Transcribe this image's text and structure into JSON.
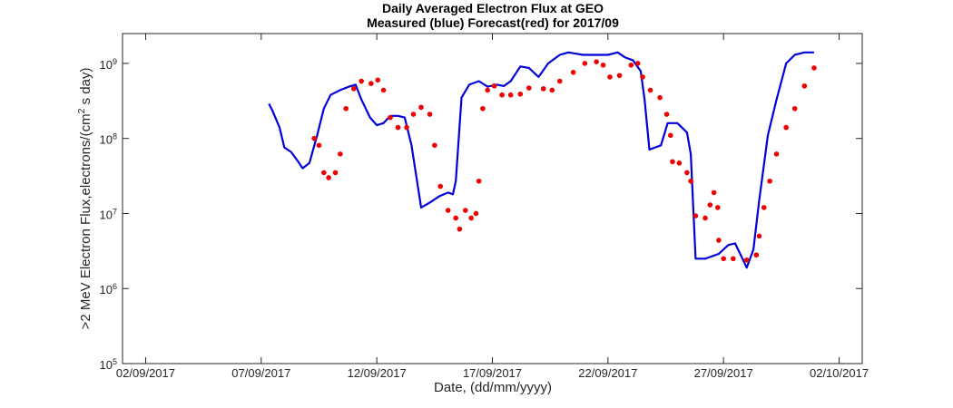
{
  "chart_data": {
    "type": "line",
    "title": "Daily Averaged Electron Flux at GEO",
    "subtitle": "Measured (blue) Forecast(red) for 2017/09",
    "x_label": "Date, (dd/mm/yyyy)",
    "y_label": ">2 MeV Electron Flux,electrons/(cm^2 s day)",
    "log_y": true,
    "grid": false,
    "xlim": [
      "2017-09-01T00:00",
      "2017-10-03T00:00"
    ],
    "xticks": [
      {
        "value": "2017-09-02T00:00",
        "label": "02/09/2017"
      },
      {
        "value": "2017-09-07T00:00",
        "label": "07/09/2017"
      },
      {
        "value": "2017-09-12T00:00",
        "label": "12/09/2017"
      },
      {
        "value": "2017-09-17T00:00",
        "label": "17/09/2017"
      },
      {
        "value": "2017-09-22T00:00",
        "label": "22/09/2017"
      },
      {
        "value": "2017-09-27T00:00",
        "label": "27/09/2017"
      },
      {
        "value": "2017-10-02T00:00",
        "label": "02/10/2017"
      }
    ],
    "ylim": [
      100000,
      2500000000
    ],
    "yticks": [
      {
        "value": 100000,
        "label": "10^5"
      },
      {
        "value": 1000000,
        "label": "10^6"
      },
      {
        "value": 10000000,
        "label": "10^7"
      },
      {
        "value": 100000000,
        "label": "10^8"
      },
      {
        "value": 1000000000,
        "label": "10^9"
      }
    ],
    "series": [
      {
        "color": "#0000d9",
        "mode": "line",
        "x": [
          "2017-09-07T08:00",
          "2017-09-07T12:00",
          "2017-09-07T19:00",
          "2017-09-08T00:00",
          "2017-09-08T07:00",
          "2017-09-08T14:00",
          "2017-09-08T19:00",
          "2017-09-09T02:00",
          "2017-09-09T10:00",
          "2017-09-09T17:00",
          "2017-09-10T00:00",
          "2017-09-10T10:00",
          "2017-09-10T19:00",
          "2017-09-11T02:00",
          "2017-09-11T08:00",
          "2017-09-11T17:00",
          "2017-09-12T00:00",
          "2017-09-12T07:00",
          "2017-09-12T14:00",
          "2017-09-12T22:00",
          "2017-09-13T05:00",
          "2017-09-13T12:00",
          "2017-09-13T22:00",
          "2017-09-14T07:00",
          "2017-09-14T17:00",
          "2017-09-15T02:00",
          "2017-09-15T07:00",
          "2017-09-15T10:00",
          "2017-09-15T16:00",
          "2017-09-16T00:00",
          "2017-09-16T10:00",
          "2017-09-16T19:00",
          "2017-09-17T05:00",
          "2017-09-17T12:00",
          "2017-09-17T19:00",
          "2017-09-18T05:00",
          "2017-09-18T14:00",
          "2017-09-19T00:00",
          "2017-09-19T10:00",
          "2017-09-19T22:00",
          "2017-09-20T07:00",
          "2017-09-20T22:00",
          "2017-09-21T12:00",
          "2017-09-22T00:00",
          "2017-09-22T10:00",
          "2017-09-22T18:00",
          "2017-09-23T02:00",
          "2017-09-23T10:00",
          "2017-09-23T14:00",
          "2017-09-23T19:00",
          "2017-09-24T01:00",
          "2017-09-24T07:00",
          "2017-09-24T14:00",
          "2017-09-25T00:00",
          "2017-09-25T10:00",
          "2017-09-25T14:00",
          "2017-09-25T19:00",
          "2017-09-26T05:00",
          "2017-09-26T19:00",
          "2017-09-27T05:00",
          "2017-09-27T12:00",
          "2017-09-27T19:00",
          "2017-09-28T00:00",
          "2017-09-28T07:00",
          "2017-09-28T13:00",
          "2017-09-28T22:00",
          "2017-09-29T07:00",
          "2017-09-29T17:00",
          "2017-09-30T02:00",
          "2017-09-30T12:00",
          "2017-09-30T22:00"
        ],
        "values": [
          290000000.0,
          230000000.0,
          140000000.0,
          76000000.0,
          66000000.0,
          50000000.0,
          40000000.0,
          47000000.0,
          110000000.0,
          250000000.0,
          380000000.0,
          440000000.0,
          490000000.0,
          520000000.0,
          330000000.0,
          190000000.0,
          150000000.0,
          160000000.0,
          200000000.0,
          200000000.0,
          190000000.0,
          81000000.0,
          12000000.0,
          14000000.0,
          17000000.0,
          19000000.0,
          18000000.0,
          27000000.0,
          350000000.0,
          520000000.0,
          580000000.0,
          490000000.0,
          520000000.0,
          500000000.0,
          580000000.0,
          910000000.0,
          870000000.0,
          660000000.0,
          1000000000.0,
          1300000000.0,
          1400000000.0,
          1300000000.0,
          1300000000.0,
          1300000000.0,
          1400000000.0,
          1200000000.0,
          1100000000.0,
          790000000.0,
          330000000.0,
          71000000.0,
          76000000.0,
          81000000.0,
          160000000.0,
          160000000.0,
          120000000.0,
          62000000.0,
          2500000.0,
          2500000.0,
          2900000.0,
          3800000.0,
          4000000.0,
          2600000.0,
          1900000.0,
          3300000.0,
          15000000.0,
          110000000.0,
          330000000.0,
          1000000000.0,
          1300000000.0,
          1400000000.0,
          1400000000.0
        ]
      },
      {
        "color": "#ee0000",
        "mode": "markers",
        "x": [
          "2017-09-09T07:00",
          "2017-09-09T12:00",
          "2017-09-09T17:00",
          "2017-09-09T22:00",
          "2017-09-10T05:00",
          "2017-09-10T10:00",
          "2017-09-10T16:00",
          "2017-09-11T00:00",
          "2017-09-11T08:00",
          "2017-09-11T18:00",
          "2017-09-12T01:00",
          "2017-09-12T07:00",
          "2017-09-12T14:00",
          "2017-09-12T22:00",
          "2017-09-13T07:00",
          "2017-09-13T14:00",
          "2017-09-13T22:00",
          "2017-09-14T07:00",
          "2017-09-14T12:00",
          "2017-09-14T18:00",
          "2017-09-15T02:00",
          "2017-09-15T10:00",
          "2017-09-15T14:00",
          "2017-09-15T20:00",
          "2017-09-16T02:00",
          "2017-09-16T07:00",
          "2017-09-16T10:00",
          "2017-09-16T14:00",
          "2017-09-16T19:00",
          "2017-09-17T02:00",
          "2017-09-17T10:00",
          "2017-09-17T19:00",
          "2017-09-18T05:00",
          "2017-09-18T14:00",
          "2017-09-19T05:00",
          "2017-09-19T14:00",
          "2017-09-19T22:00",
          "2017-09-20T12:00",
          "2017-09-21T00:00",
          "2017-09-21T12:00",
          "2017-09-21T19:00",
          "2017-09-22T02:00",
          "2017-09-22T12:00",
          "2017-09-23T00:00",
          "2017-09-23T07:00",
          "2017-09-23T12:00",
          "2017-09-23T20:00",
          "2017-09-24T06:00",
          "2017-09-24T13:00",
          "2017-09-24T17:00",
          "2017-09-24T19:00",
          "2017-09-25T02:00",
          "2017-09-25T10:00",
          "2017-09-25T14:00",
          "2017-09-25T19:00",
          "2017-09-26T05:00",
          "2017-09-26T10:00",
          "2017-09-26T14:00",
          "2017-09-26T18:00",
          "2017-09-26T19:00",
          "2017-09-27T00:00",
          "2017-09-27T10:00",
          "2017-09-28T00:00",
          "2017-09-28T10:00",
          "2017-09-28T13:00",
          "2017-09-28T18:00",
          "2017-09-29T00:00",
          "2017-09-29T07:00",
          "2017-09-29T17:00",
          "2017-09-30T02:00",
          "2017-09-30T12:00",
          "2017-09-30T22:00"
        ],
        "values": [
          100000000.0,
          81000000.0,
          35000000.0,
          30000000.0,
          35000000.0,
          62000000.0,
          250000000.0,
          460000000.0,
          580000000.0,
          540000000.0,
          600000000.0,
          440000000.0,
          190000000.0,
          140000000.0,
          140000000.0,
          210000000.0,
          260000000.0,
          210000000.0,
          81000000.0,
          23000000.0,
          11000000.0,
          8700000.0,
          6200000.0,
          11000000.0,
          8700000.0,
          10000000.0,
          27000000.0,
          250000000.0,
          440000000.0,
          500000000.0,
          380000000.0,
          380000000.0,
          390000000.0,
          470000000.0,
          460000000.0,
          440000000.0,
          580000000.0,
          760000000.0,
          1000000000.0,
          1050000000.0,
          950000000.0,
          660000000.0,
          690000000.0,
          950000000.0,
          1000000000.0,
          660000000.0,
          440000000.0,
          350000000.0,
          210000000.0,
          110000000.0,
          49000000.0,
          47000000.0,
          35000000.0,
          27000000.0,
          9300000.0,
          8700000.0,
          13000000.0,
          19000000.0,
          12000000.0,
          4400000.0,
          2500000.0,
          2500000.0,
          2400000.0,
          2800000.0,
          5000000.0,
          12000000.0,
          27000000.0,
          62000000.0,
          140000000.0,
          250000000.0,
          500000000.0,
          870000000.0
        ]
      }
    ]
  }
}
